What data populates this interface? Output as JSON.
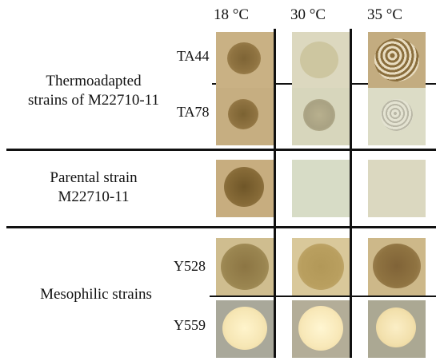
{
  "columns": [
    {
      "label": "18 °C"
    },
    {
      "label": "30 °C"
    },
    {
      "label": "35 °C"
    }
  ],
  "groups": [
    {
      "label_lines": [
        "Thermoadapted",
        "strains of M22710-11"
      ]
    },
    {
      "label_lines": [
        "Parental strain",
        "M22710-11"
      ]
    },
    {
      "label_lines": [
        "Mesophilic strains"
      ]
    }
  ],
  "strains": [
    {
      "label": "TA44"
    },
    {
      "label": "TA78"
    },
    {
      "label": ""
    },
    {
      "label": "Y528"
    },
    {
      "label": "Y559"
    }
  ],
  "colors": {
    "plate_tan": "#c9b184",
    "plate_pale": "#dcd8bf",
    "plate_green_pale": "#d7dcc6",
    "plate_gray": "#a9a89a",
    "colony_brown": "#8f7341",
    "colony_pale": "#cdc6a0",
    "colony_olive": "#9a8550",
    "colony_cream": "#f6e6b4"
  }
}
